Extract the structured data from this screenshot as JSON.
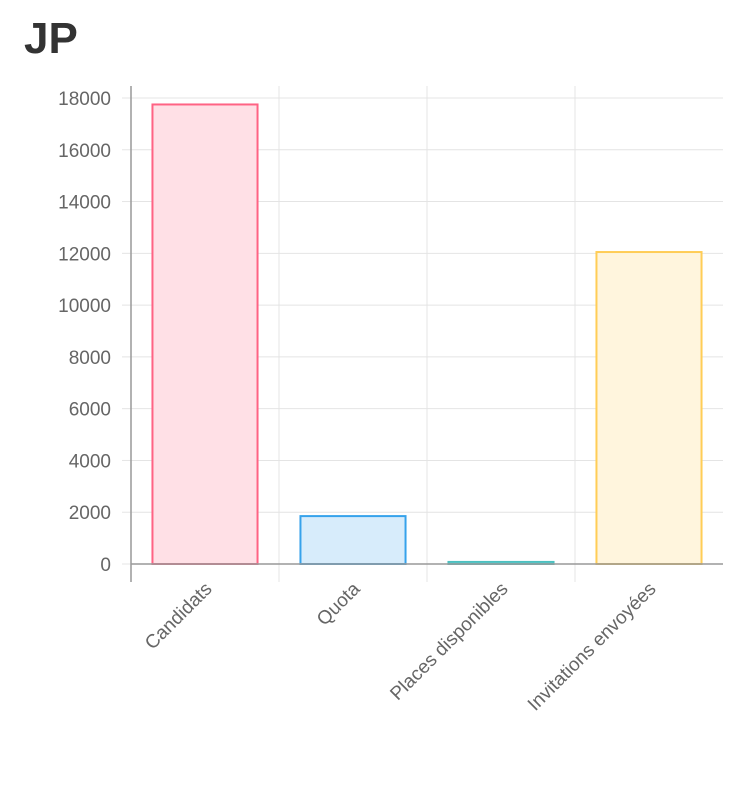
{
  "title": "JP",
  "chart_data": {
    "type": "bar",
    "title": "JP",
    "categories": [
      "Candidats",
      "Quota",
      "Places disponibles",
      "Invitations envoyées"
    ],
    "values": [
      17750,
      1850,
      80,
      12050
    ],
    "ylim": [
      0,
      18000
    ],
    "yticks": [
      0,
      2000,
      4000,
      6000,
      8000,
      10000,
      12000,
      14000,
      16000,
      18000
    ],
    "grid": true,
    "legend": "none",
    "colors": {
      "fill": [
        "#ffe0e6",
        "#d7ecfb",
        "#dbf2f2",
        "#fff5dd"
      ],
      "border": [
        "#ff6384",
        "#36a2eb",
        "#4bc0c0",
        "#ffcd56"
      ]
    }
  }
}
